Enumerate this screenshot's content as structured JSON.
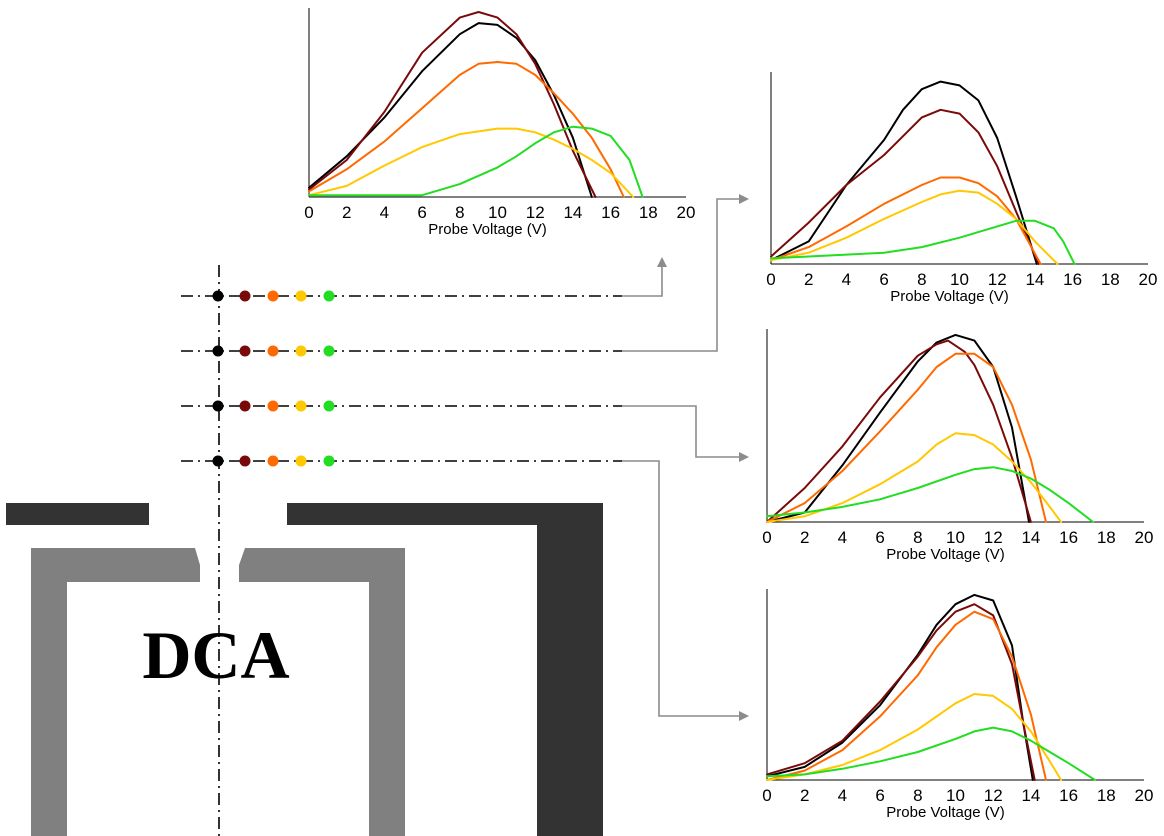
{
  "diagram": {
    "label": "DCA",
    "probe_rows": 4,
    "probe_colors": [
      "#000000",
      "#7a0a0a",
      "#ff6a00",
      "#ffc800",
      "#22dd22"
    ],
    "colors": {
      "outer_electrode": "#333333",
      "inner_electrode": "#808080",
      "connector": "#8c8c8c"
    }
  },
  "chart_data": [
    {
      "type": "line",
      "xlabel": "Probe Voltage (V)",
      "xlim": [
        0,
        20
      ],
      "xticks": [
        "0",
        "2",
        "4",
        "6",
        "8",
        "10",
        "12",
        "14",
        "16",
        "18",
        "20"
      ],
      "ylim": [
        0,
        1
      ],
      "series": [
        {
          "color": "#000000",
          "x": [
            0,
            2,
            4,
            6,
            8,
            9,
            10,
            11,
            12,
            13,
            14,
            15
          ],
          "y": [
            0.05,
            0.22,
            0.43,
            0.68,
            0.88,
            0.94,
            0.93,
            0.86,
            0.74,
            0.55,
            0.32,
            0.0
          ]
        },
        {
          "color": "#7a0a0a",
          "x": [
            0,
            2,
            4,
            6,
            8,
            9,
            10,
            11,
            12,
            13,
            14,
            15.2
          ],
          "y": [
            0.04,
            0.2,
            0.46,
            0.78,
            0.97,
            1.0,
            0.97,
            0.88,
            0.72,
            0.5,
            0.25,
            0.0
          ]
        },
        {
          "color": "#ff6a00",
          "x": [
            0,
            2,
            4,
            6,
            8,
            9,
            10,
            11,
            12,
            13,
            14,
            15,
            16,
            16.7
          ],
          "y": [
            0.03,
            0.15,
            0.3,
            0.48,
            0.66,
            0.72,
            0.73,
            0.72,
            0.66,
            0.56,
            0.45,
            0.32,
            0.15,
            0.0
          ]
        },
        {
          "color": "#ffc800",
          "x": [
            0,
            2,
            4,
            6,
            8,
            10,
            11,
            12,
            13,
            14,
            15,
            16,
            17.2
          ],
          "y": [
            0.01,
            0.06,
            0.17,
            0.27,
            0.34,
            0.37,
            0.37,
            0.35,
            0.31,
            0.26,
            0.2,
            0.13,
            0.0
          ]
        },
        {
          "color": "#22dd22",
          "x": [
            0,
            2,
            4,
            6,
            8,
            10,
            11,
            12,
            13,
            14,
            15,
            16,
            17,
            17.7
          ],
          "y": [
            0.01,
            0.01,
            0.01,
            0.01,
            0.07,
            0.16,
            0.22,
            0.29,
            0.35,
            0.38,
            0.37,
            0.33,
            0.2,
            0.0
          ]
        }
      ]
    },
    {
      "type": "line",
      "xlabel": "Probe Voltage (V)",
      "xlim": [
        0,
        20
      ],
      "xticks": [
        "0",
        "2",
        "4",
        "6",
        "8",
        "10",
        "12",
        "14",
        "16",
        "18",
        "20"
      ],
      "ylim": [
        0,
        1
      ],
      "series": [
        {
          "color": "#000000",
          "x": [
            0,
            2,
            4,
            6,
            7,
            8,
            9,
            10,
            11,
            12,
            13,
            14.1
          ],
          "y": [
            0.02,
            0.12,
            0.42,
            0.66,
            0.82,
            0.93,
            0.97,
            0.95,
            0.87,
            0.67,
            0.36,
            0.0
          ]
        },
        {
          "color": "#7a0a0a",
          "x": [
            0,
            2,
            4,
            6,
            7,
            8,
            9,
            10,
            11,
            12,
            13,
            14.2
          ],
          "y": [
            0.04,
            0.22,
            0.42,
            0.58,
            0.68,
            0.78,
            0.82,
            0.8,
            0.7,
            0.52,
            0.28,
            0.0
          ]
        },
        {
          "color": "#ff6a00",
          "x": [
            0,
            2,
            4,
            6,
            8,
            9,
            10,
            11,
            12,
            13,
            14.3
          ],
          "y": [
            0.02,
            0.09,
            0.2,
            0.32,
            0.42,
            0.46,
            0.46,
            0.43,
            0.36,
            0.24,
            0.0
          ]
        },
        {
          "color": "#ffc800",
          "x": [
            0,
            2,
            4,
            6,
            8,
            9,
            10,
            11,
            12,
            13,
            14,
            15.2
          ],
          "y": [
            0.02,
            0.06,
            0.14,
            0.24,
            0.33,
            0.37,
            0.39,
            0.38,
            0.32,
            0.24,
            0.12,
            0.0
          ]
        },
        {
          "color": "#22dd22",
          "x": [
            0,
            2,
            4,
            6,
            8,
            10,
            12,
            13,
            14,
            15,
            15.5,
            16.1
          ],
          "y": [
            0.03,
            0.04,
            0.05,
            0.06,
            0.09,
            0.14,
            0.2,
            0.23,
            0.23,
            0.19,
            0.12,
            0.0
          ]
        }
      ]
    },
    {
      "type": "line",
      "xlabel": "Probe Voltage (V)",
      "xlim": [
        0,
        20
      ],
      "xticks": [
        "0",
        "2",
        "4",
        "6",
        "8",
        "10",
        "12",
        "14",
        "16",
        "18",
        "20"
      ],
      "ylim": [
        0,
        1
      ],
      "series": [
        {
          "color": "#000000",
          "x": [
            0,
            2,
            4,
            6,
            8,
            9,
            10,
            11,
            12,
            13,
            13.9
          ],
          "y": [
            0.0,
            0.05,
            0.3,
            0.58,
            0.85,
            0.95,
            0.99,
            0.96,
            0.82,
            0.5,
            0.0
          ]
        },
        {
          "color": "#7a0a0a",
          "x": [
            0,
            2,
            4,
            6,
            8,
            9,
            9.6,
            10.5,
            11,
            12,
            13,
            14
          ],
          "y": [
            0.0,
            0.18,
            0.4,
            0.66,
            0.88,
            0.94,
            0.96,
            0.9,
            0.83,
            0.62,
            0.34,
            0.0
          ]
        },
        {
          "color": "#ff6a00",
          "x": [
            0,
            2,
            4,
            6,
            8,
            9,
            10,
            11,
            12,
            13,
            14,
            14.8
          ],
          "y": [
            0.0,
            0.1,
            0.27,
            0.48,
            0.7,
            0.82,
            0.89,
            0.89,
            0.82,
            0.62,
            0.33,
            0.0
          ]
        },
        {
          "color": "#ffc800",
          "x": [
            0,
            2,
            4,
            6,
            8,
            9,
            10,
            11,
            12,
            13,
            14,
            15,
            15.6
          ],
          "y": [
            0.0,
            0.03,
            0.1,
            0.2,
            0.32,
            0.41,
            0.47,
            0.46,
            0.41,
            0.32,
            0.21,
            0.08,
            0.0
          ]
        },
        {
          "color": "#22dd22",
          "x": [
            0,
            2,
            4,
            6,
            8,
            10,
            11,
            12,
            13,
            14,
            15,
            16,
            17.3
          ],
          "y": [
            0.03,
            0.05,
            0.08,
            0.12,
            0.18,
            0.25,
            0.28,
            0.29,
            0.27,
            0.23,
            0.17,
            0.1,
            0.0
          ]
        }
      ]
    },
    {
      "type": "line",
      "xlabel": "Probe Voltage (V)",
      "xlim": [
        0,
        20
      ],
      "xticks": [
        "0",
        "2",
        "4",
        "6",
        "8",
        "10",
        "12",
        "14",
        "16",
        "18",
        "20"
      ],
      "ylim": [
        0,
        1
      ],
      "series": [
        {
          "color": "#000000",
          "x": [
            0,
            2,
            4,
            6,
            8,
            9,
            10,
            11,
            12,
            13,
            13.6,
            14.1
          ],
          "y": [
            0.02,
            0.07,
            0.2,
            0.4,
            0.67,
            0.83,
            0.94,
            0.99,
            0.96,
            0.72,
            0.3,
            0.0
          ]
        },
        {
          "color": "#7a0a0a",
          "x": [
            0,
            2,
            4,
            6,
            8,
            9,
            10,
            11,
            12,
            13,
            13.6,
            14.2
          ],
          "y": [
            0.03,
            0.09,
            0.21,
            0.42,
            0.66,
            0.8,
            0.9,
            0.94,
            0.88,
            0.62,
            0.3,
            0.0
          ]
        },
        {
          "color": "#ff6a00",
          "x": [
            0,
            2,
            4,
            6,
            8,
            9,
            10,
            11,
            12,
            13,
            14,
            14.8
          ],
          "y": [
            0.0,
            0.05,
            0.16,
            0.34,
            0.56,
            0.71,
            0.83,
            0.9,
            0.86,
            0.66,
            0.35,
            0.0
          ]
        },
        {
          "color": "#ffc800",
          "x": [
            0,
            2,
            4,
            6,
            8,
            10,
            11,
            12,
            13,
            14,
            15,
            15.6
          ],
          "y": [
            0.0,
            0.03,
            0.08,
            0.16,
            0.27,
            0.41,
            0.46,
            0.45,
            0.38,
            0.26,
            0.1,
            0.0
          ]
        },
        {
          "color": "#22dd22",
          "x": [
            0,
            2,
            4,
            6,
            8,
            10,
            11,
            12,
            13,
            14,
            15,
            16,
            17.4
          ],
          "y": [
            0.02,
            0.03,
            0.06,
            0.1,
            0.15,
            0.22,
            0.26,
            0.28,
            0.26,
            0.21,
            0.15,
            0.09,
            0.0
          ]
        }
      ]
    }
  ]
}
